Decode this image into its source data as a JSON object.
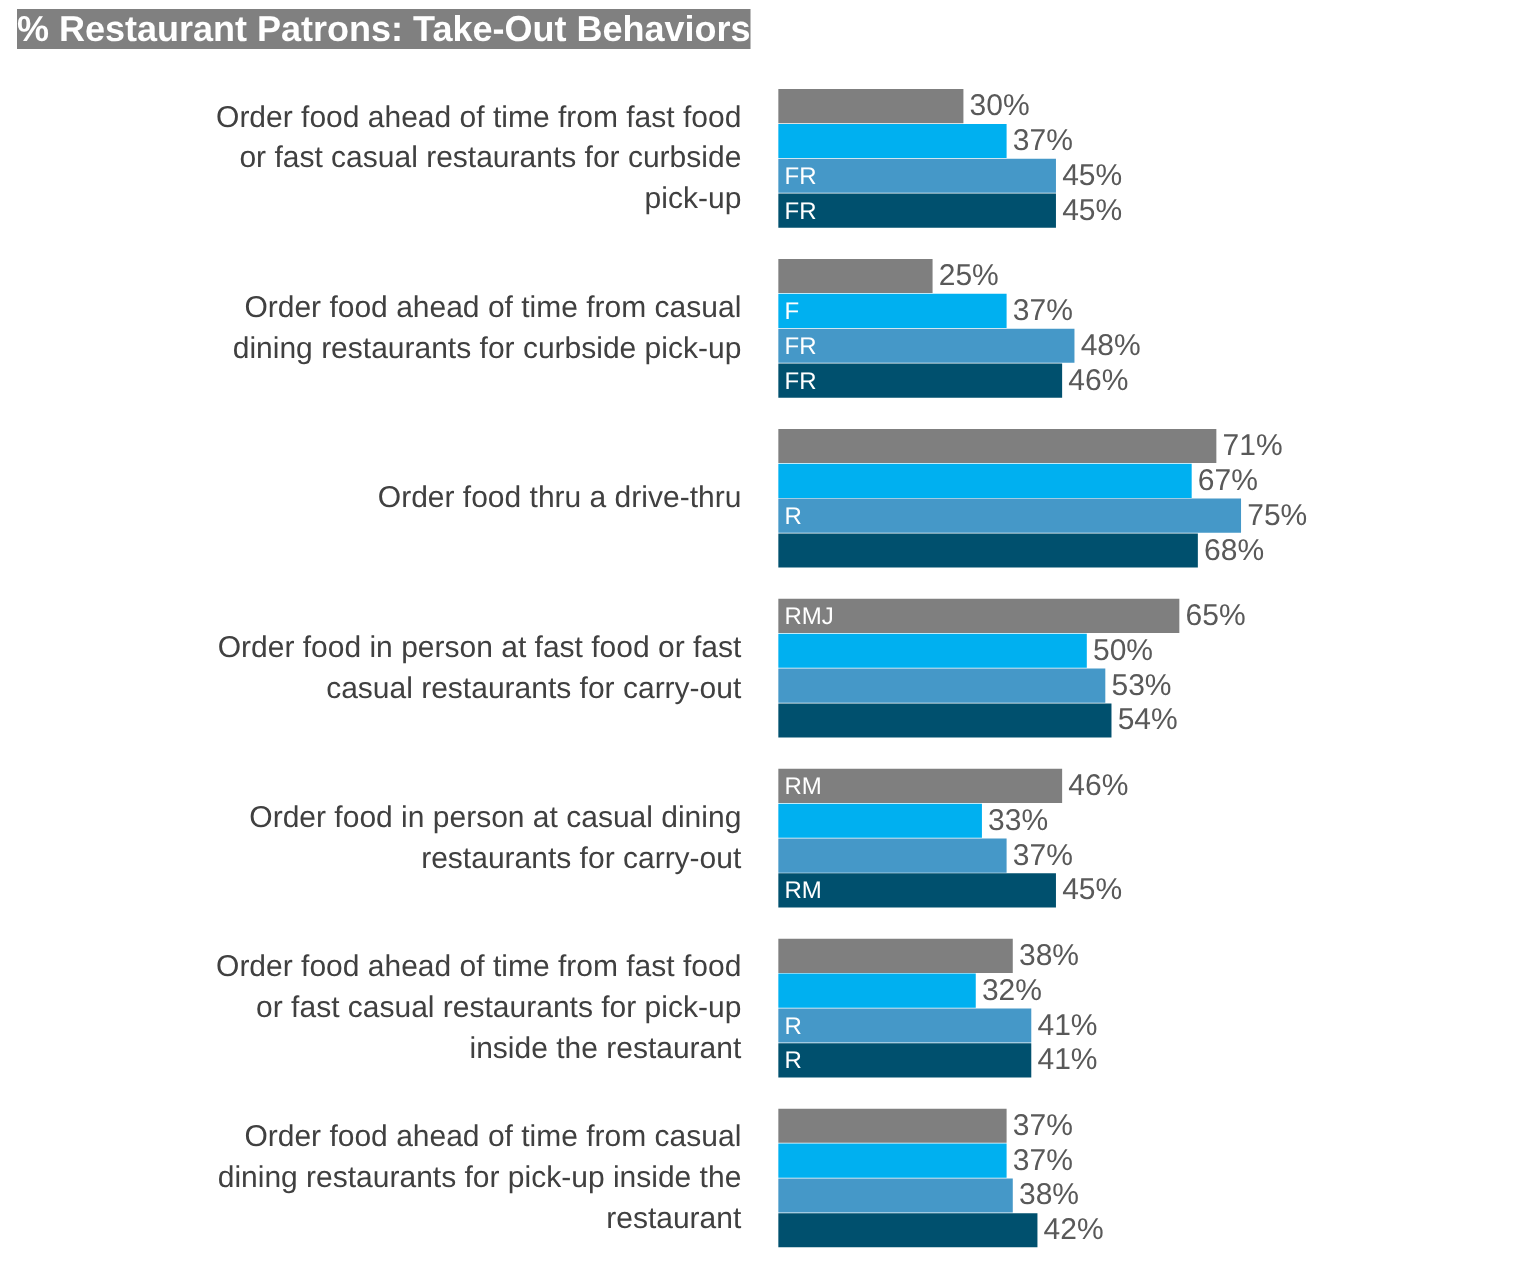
{
  "chart_data": {
    "type": "bar",
    "orientation": "horizontal",
    "title": "% Restaurant Patrons: Take-Out Behaviors",
    "categories": [
      "Order food ahead of time from fast food\nor fast casual restaurants for curbside\npick-up",
      "Order food ahead of time from casual\ndining restaurants for curbside pick-up",
      "Order food thru a drive-thru",
      "Order food in person at fast food or fast\ncasual restaurants for carry-out",
      "Order food in person at casual dining\nrestaurants for carry-out",
      "Order food ahead of time from fast food\nor fast casual restaurants for pick-up\ninside the restaurant",
      "Order food ahead of time from casual\ndining restaurants for pick-up inside the\nrestaurant"
    ],
    "series": [
      {
        "color": "#7f7f7f",
        "values": [
          30,
          25,
          71,
          65,
          46,
          38,
          37
        ],
        "value_labels": [
          "30%",
          "25%",
          "71%",
          "65%",
          "46%",
          "38%",
          "37%"
        ]
      },
      {
        "color": "#00b0f0",
        "values": [
          37,
          37,
          67,
          50,
          33,
          32,
          37
        ],
        "value_labels": [
          "37%",
          "37%",
          "67%",
          "50%",
          "33%",
          "32%",
          "37%"
        ]
      },
      {
        "color": "#4598c8",
        "values": [
          45,
          48,
          75,
          53,
          37,
          41,
          38
        ],
        "value_labels": [
          "45%",
          "48%",
          "75%",
          "53%",
          "37%",
          "41%",
          "38%"
        ]
      },
      {
        "color": "#00506e",
        "values": [
          45,
          46,
          68,
          54,
          45,
          41,
          42
        ],
        "value_labels": [
          "45%",
          "46%",
          "68%",
          "54%",
          "45%",
          "41%",
          "42%"
        ]
      }
    ],
    "annotations": [
      "FR",
      "FR",
      "F",
      "FR",
      "FR",
      "R",
      "RMJ",
      "RM",
      "RM",
      "R",
      "R"
    ],
    "grid": false
  }
}
